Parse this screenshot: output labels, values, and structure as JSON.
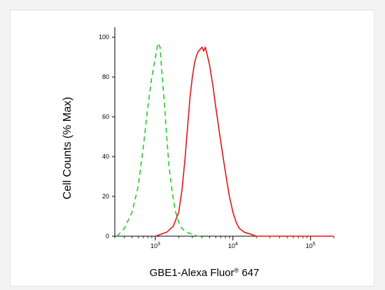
{
  "chart_data": {
    "type": "line",
    "xscale": "log",
    "xlim": [
      300,
      200000
    ],
    "ylim": [
      0,
      105
    ],
    "x_tick_labels": [
      {
        "base": "10",
        "exp": "3",
        "value": 1000
      },
      {
        "base": "10",
        "exp": "4",
        "value": 10000
      },
      {
        "base": "10",
        "exp": "5",
        "value": 100000
      }
    ],
    "y_ticks": [
      {
        "label": "0",
        "value": 0
      },
      {
        "label": "20",
        "value": 20
      },
      {
        "label": "40",
        "value": 40
      },
      {
        "label": "60",
        "value": 60
      },
      {
        "label": "80",
        "value": 80
      },
      {
        "label": "100",
        "value": 100
      }
    ],
    "ylabel": "Cell Counts (% Max)",
    "xlabel": {
      "main": "GBE1-Alexa Fluor",
      "registered": "®",
      "suffix": " 647"
    },
    "series": [
      {
        "color": "#22cc22",
        "style": "dashed",
        "x": [
          320,
          400,
          500,
          600,
          700,
          800,
          900,
          1000,
          1080,
          1150,
          1200,
          1300,
          1400,
          1500,
          1650,
          1800,
          2000,
          2200,
          2500,
          3000,
          3500,
          4000
        ],
        "y": [
          0,
          4,
          12,
          25,
          45,
          65,
          80,
          90,
          97,
          95,
          85,
          68,
          50,
          35,
          22,
          13,
          7,
          4,
          2,
          1,
          0,
          0
        ]
      },
      {
        "color": "#ee1111",
        "style": "solid",
        "x": [
          1000,
          1400,
          1700,
          2000,
          2200,
          2400,
          2600,
          2800,
          3000,
          3200,
          3400,
          3600,
          3800,
          4000,
          4200,
          4400,
          4600,
          5000,
          5500,
          6000,
          7000,
          8000,
          9000,
          10000,
          11000,
          12000,
          14000,
          17000,
          20000,
          30000,
          50000,
          100000,
          200000
        ],
        "y": [
          0,
          2,
          5,
          12,
          23,
          38,
          55,
          70,
          80,
          87,
          91,
          93,
          94,
          95,
          93,
          95,
          92,
          86,
          76,
          65,
          47,
          32,
          20,
          12,
          7,
          4,
          2,
          1,
          0,
          0,
          0,
          0,
          0
        ]
      }
    ]
  }
}
